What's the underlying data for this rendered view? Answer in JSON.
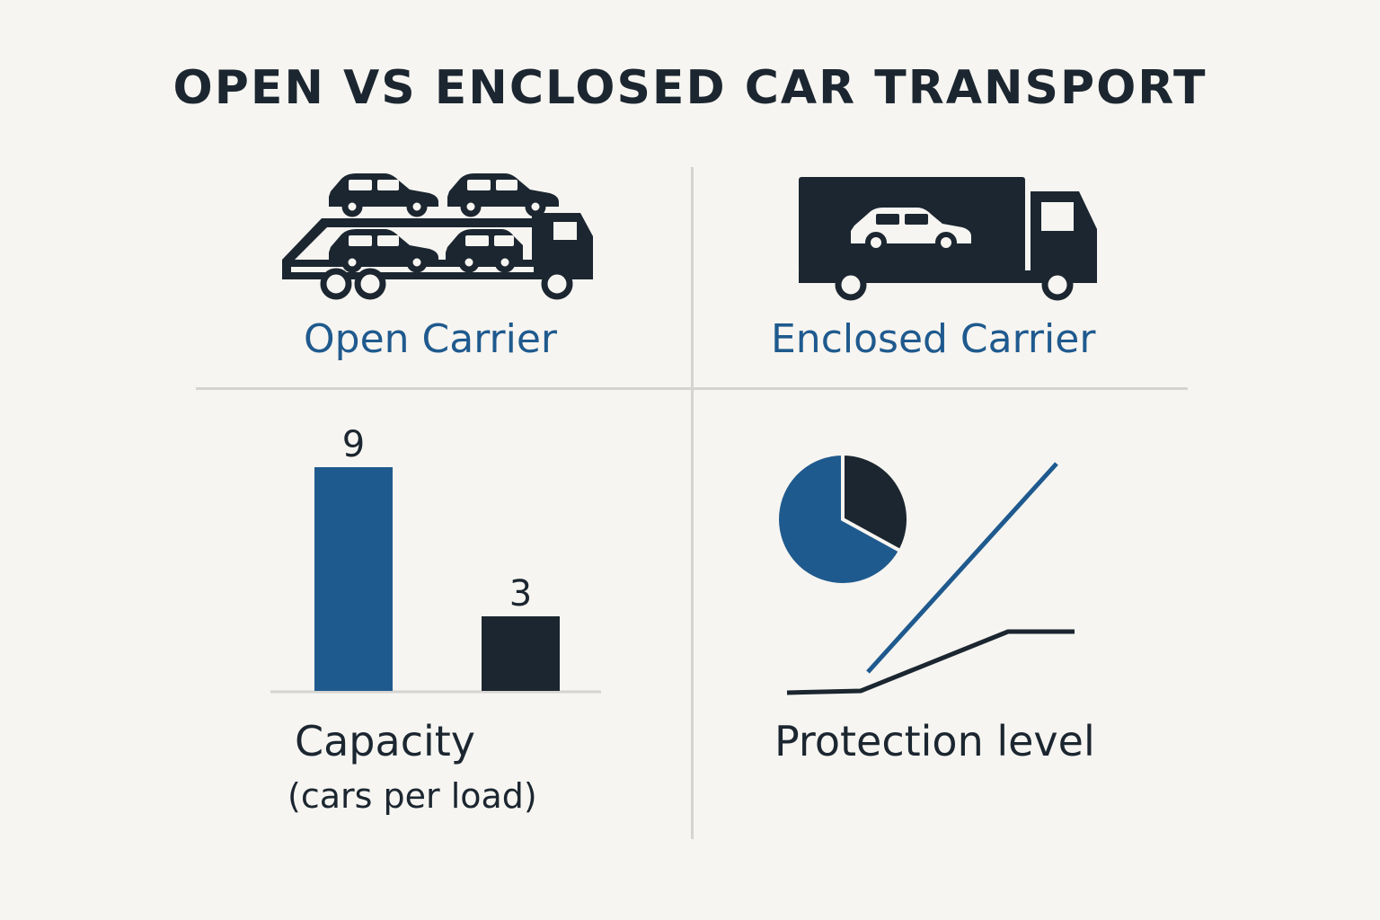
{
  "title": "OPEN VS ENCLOSED CAR TRANSPORT",
  "open_carrier": {
    "label": "Open Carrier",
    "icon": "open-car-carrier-truck-icon"
  },
  "enclosed_carrier": {
    "label": "Enclosed Carrier",
    "icon": "enclosed-car-carrier-truck-icon"
  },
  "capacity": {
    "label": "Capacity",
    "sublabel": "(cars per load)"
  },
  "protection": {
    "label": "Protection level"
  },
  "colors": {
    "accent": "#1f5a8e",
    "dark": "#1b2630",
    "background": "#f7f5f1",
    "divider": "#d6d4d0"
  },
  "chart_data": [
    {
      "type": "bar",
      "categories": [
        "Open Carrier",
        "Enclosed Carrier"
      ],
      "values": [
        9,
        3
      ],
      "ylim": [
        0,
        9
      ],
      "colors": [
        "#1f5a8e",
        "#1b2630"
      ]
    },
    {
      "type": "pie",
      "slices": [
        {
          "value": 0.67,
          "color": "#1f5a8e"
        },
        {
          "value": 0.33,
          "color": "#1b2630"
        }
      ]
    },
    {
      "type": "line",
      "series": [
        {
          "color": "#1f5a8e",
          "points": [
            [
              0,
              0.1
            ],
            [
              1,
              1.0
            ]
          ]
        },
        {
          "color": "#1b2630",
          "points": [
            [
              0,
              0.0
            ],
            [
              0.27,
              0.01
            ],
            [
              0.77,
              0.26
            ],
            [
              1,
              0.26
            ]
          ]
        }
      ],
      "xlim": [
        0,
        1
      ],
      "ylim": [
        0,
        1
      ]
    }
  ]
}
